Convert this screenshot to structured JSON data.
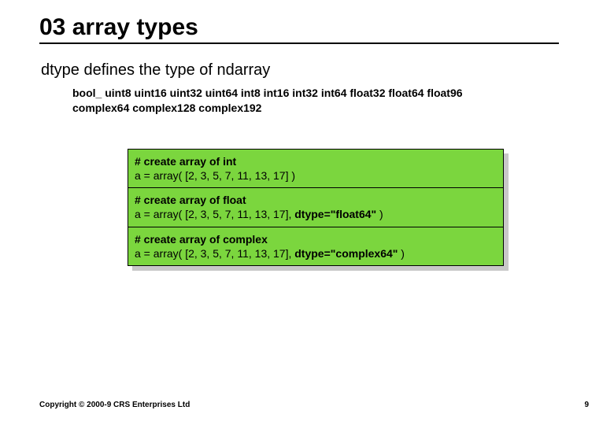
{
  "slide": {
    "title": "03 array types",
    "subtitle": "dtype defines the type of ndarray",
    "types_line1": "bool_ uint8 uint16 uint32 uint64 int8 int16 int32 int64 float32 float64 float96",
    "types_line2": "complex64 complex128 complex192",
    "boxes": [
      {
        "comment": "# create array of int",
        "code_prefix": "a = array( [2, 3, 5, 7, 11, 13, 17] )",
        "code_bold": "",
        "code_suffix": ""
      },
      {
        "comment": "# create array of float",
        "code_prefix": "a = array( [2, 3, 5, 7, 11, 13, 17], ",
        "code_bold": "dtype=\"float64\"",
        "code_suffix": " )"
      },
      {
        "comment": "# create array of complex",
        "code_prefix": "a = array( [2, 3, 5, 7, 11, 13, 17], ",
        "code_bold": "dtype=\"complex64\"",
        "code_suffix": " )"
      }
    ],
    "footer": "Copyright © 2000-9 CRS Enterprises Ltd",
    "page_number": "9"
  },
  "style": {
    "box_bg": "#7bd63e",
    "shadow_color": "#c8c8c8",
    "text_color": "#000000",
    "background": "#ffffff",
    "title_fontsize": 30,
    "subtitle_fontsize": 20,
    "types_fontsize": 14,
    "code_fontsize": 14,
    "footer_fontsize": 10
  }
}
